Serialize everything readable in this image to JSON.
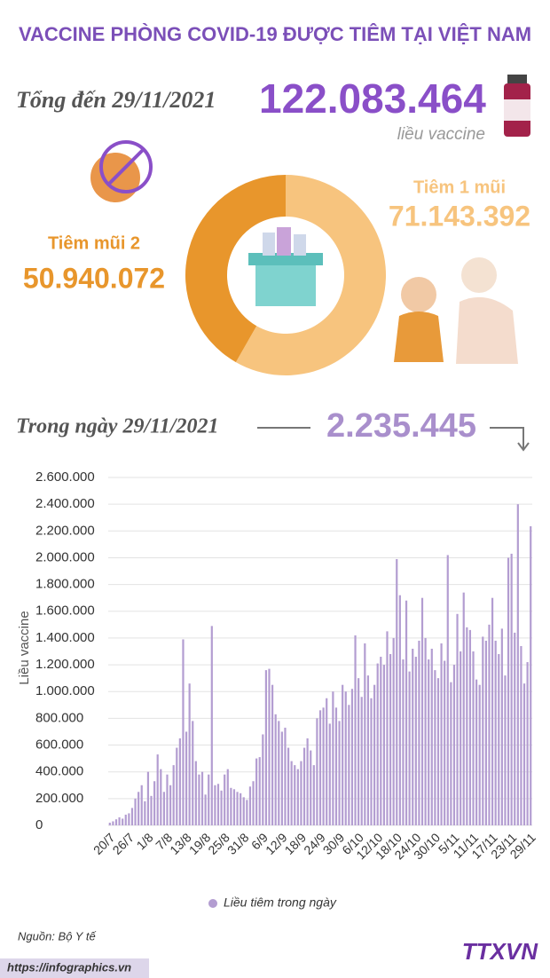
{
  "header": {
    "title": "VACCINE PHÒNG COVID-19 ĐƯỢC TIÊM TẠI VIỆT NAM",
    "total_label": "Tổng đến 29/11/2021",
    "total_value": "122.083.464",
    "total_unit": "liều vaccine"
  },
  "chart_data": [
    {
      "type": "donut",
      "categories": [
        "Tiêm 1 mũi",
        "Tiêm mũi 2"
      ],
      "values": [
        71143392,
        50940072
      ],
      "value_labels": [
        "71.143.392",
        "50.940.072"
      ],
      "colors": [
        "#f7c47e",
        "#e8962c"
      ]
    },
    {
      "type": "bar",
      "title": "Trong ngày 29/11/2021",
      "annotation": "2.235.445",
      "ylabel": "Liều vaccine",
      "grid": true,
      "ylim": [
        0,
        2600000
      ],
      "yticks": [
        0,
        {
          "value": 200000,
          "label": "200.000"
        },
        {
          "value": 400000,
          "label": "400.000"
        },
        {
          "value": 600000,
          "label": "600.000"
        },
        {
          "value": 800000,
          "label": "800.000"
        },
        {
          "value": 1000000,
          "label": "1.000.000"
        },
        {
          "value": 1200000,
          "label": "1.200.000"
        },
        {
          "value": 1400000,
          "label": "1.400.000"
        },
        {
          "value": 1600000,
          "label": "1.600.000"
        },
        {
          "value": 1800000,
          "label": "1.800.000"
        },
        {
          "value": 2000000,
          "label": "2.000.000"
        },
        {
          "value": 2200000,
          "label": "2.200.000"
        },
        {
          "value": 2400000,
          "label": "2.400.000"
        },
        {
          "value": 2600000,
          "label": "2.600.000"
        }
      ],
      "categories": [
        "20/7",
        null,
        null,
        null,
        null,
        null,
        "26/7",
        null,
        null,
        null,
        null,
        null,
        "1/8",
        null,
        null,
        null,
        null,
        null,
        "7/8",
        null,
        null,
        null,
        null,
        null,
        "13/8",
        null,
        null,
        null,
        null,
        null,
        "19/8",
        null,
        null,
        null,
        null,
        null,
        "25/8",
        null,
        null,
        null,
        null,
        null,
        "31/8",
        null,
        null,
        null,
        null,
        null,
        "6/9",
        null,
        null,
        null,
        null,
        null,
        "12/9",
        null,
        null,
        null,
        null,
        null,
        "18/9",
        null,
        null,
        null,
        null,
        null,
        "24/9",
        null,
        null,
        null,
        null,
        null,
        "30/9",
        null,
        null,
        null,
        null,
        null,
        "6/10",
        null,
        null,
        null,
        null,
        null,
        "12/10",
        null,
        null,
        null,
        null,
        null,
        "18/10",
        null,
        null,
        null,
        null,
        null,
        "24/10",
        null,
        null,
        null,
        null,
        null,
        "30/10",
        null,
        null,
        null,
        null,
        null,
        "5/11",
        null,
        null,
        null,
        null,
        null,
        "11/11",
        null,
        null,
        null,
        null,
        null,
        "17/11",
        null,
        null,
        null,
        null,
        null,
        "23/11",
        null,
        null,
        null,
        null,
        null,
        "29/11"
      ],
      "series": [
        {
          "name": "Liều tiêm trong ngày",
          "color": "#b39dd1",
          "values": [
            20000,
            30000,
            45000,
            60000,
            50000,
            80000,
            90000,
            130000,
            200000,
            250000,
            300000,
            180000,
            400000,
            220000,
            330000,
            530000,
            420000,
            250000,
            380000,
            300000,
            450000,
            580000,
            650000,
            1390000,
            700000,
            1060000,
            780000,
            480000,
            380000,
            400000,
            230000,
            380000,
            1490000,
            300000,
            310000,
            260000,
            380000,
            420000,
            280000,
            270000,
            250000,
            240000,
            210000,
            190000,
            290000,
            330000,
            500000,
            510000,
            680000,
            1160000,
            1170000,
            1050000,
            830000,
            780000,
            700000,
            730000,
            580000,
            480000,
            450000,
            420000,
            480000,
            580000,
            650000,
            560000,
            450000,
            800000,
            860000,
            880000,
            950000,
            760000,
            1000000,
            880000,
            780000,
            1050000,
            1000000,
            900000,
            1020000,
            1420000,
            1100000,
            960000,
            1360000,
            1120000,
            950000,
            1050000,
            1210000,
            1260000,
            1200000,
            1450000,
            1280000,
            1400000,
            1990000,
            1720000,
            1240000,
            1680000,
            1150000,
            1320000,
            1260000,
            1380000,
            1700000,
            1400000,
            1240000,
            1320000,
            1160000,
            1100000,
            1360000,
            1230000,
            2020000,
            1070000,
            1200000,
            1580000,
            1300000,
            1740000,
            1480000,
            1460000,
            1300000,
            1090000,
            1050000,
            1410000,
            1380000,
            1500000,
            1700000,
            1380000,
            1280000,
            1470000,
            1120000,
            2000000,
            2030000,
            1440000,
            2400000,
            1340000,
            1060000,
            1220000,
            2235445
          ]
        }
      ]
    }
  ],
  "footer": {
    "source": "Nguồn: Bộ Y tế",
    "url": "https://infographics.vn",
    "logo": "TTXVN"
  }
}
